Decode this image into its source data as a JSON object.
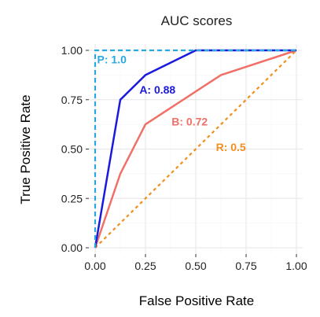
{
  "chart_data": {
    "type": "line",
    "title": "AUC scores",
    "xlabel": "False Positive Rate",
    "ylabel": "True Positive Rate",
    "xlim": [
      0,
      1
    ],
    "ylim": [
      0,
      1
    ],
    "xticks": [
      "0.00",
      "0.25",
      "0.50",
      "0.75",
      "1.00"
    ],
    "yticks": [
      "0.00",
      "0.25",
      "0.50",
      "0.75",
      "1.00"
    ],
    "grid": true,
    "series": [
      {
        "name": "P",
        "label": "P: 1.0",
        "color": "#29a8e0",
        "style": "dashed",
        "x": [
          0,
          0,
          1
        ],
        "y": [
          0,
          1,
          1
        ]
      },
      {
        "name": "A",
        "label": "A: 0.88",
        "color": "#1a1adb",
        "style": "solid",
        "x": [
          0,
          0.125,
          0.25,
          0.5,
          1
        ],
        "y": [
          0,
          0.75,
          0.875,
          1,
          1
        ]
      },
      {
        "name": "B",
        "label": "B: 0.72",
        "color": "#f07068",
        "style": "solid",
        "x": [
          0,
          0.125,
          0.25,
          0.625,
          1
        ],
        "y": [
          0,
          0.375,
          0.625,
          0.875,
          1
        ]
      },
      {
        "name": "R",
        "label": "R: 0.5",
        "color": "#f0901e",
        "style": "dotted",
        "x": [
          0,
          1
        ],
        "y": [
          0,
          1
        ]
      }
    ],
    "annotations": [
      {
        "series": "P",
        "text": "P: 1.0",
        "x": 0.01,
        "y": 0.935
      },
      {
        "series": "A",
        "text": "A: 0.88",
        "x": 0.22,
        "y": 0.78
      },
      {
        "series": "B",
        "text": "B: 0.72",
        "x": 0.38,
        "y": 0.62
      },
      {
        "series": "R",
        "text": "R: 0.5",
        "x": 0.6,
        "y": 0.49
      }
    ]
  }
}
